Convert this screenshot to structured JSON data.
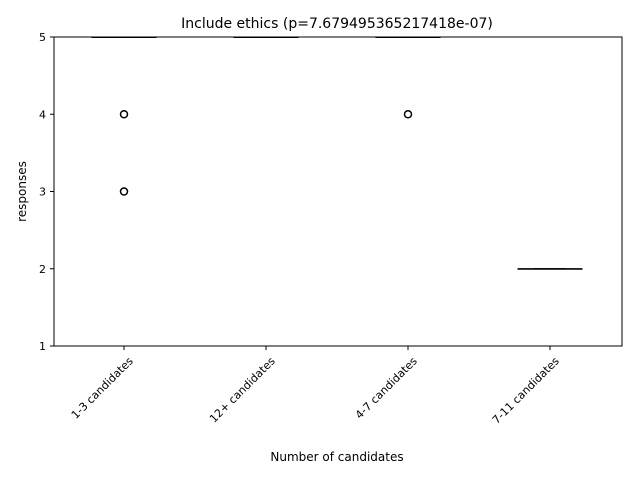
{
  "chart_data": {
    "type": "box",
    "title": "Include ethics (p=7.679495365217418e-07)",
    "xlabel": "Number of candidates",
    "ylabel": "responses",
    "ylim": [
      1,
      5
    ],
    "yticks": [
      1,
      2,
      3,
      4,
      5
    ],
    "categories": [
      "1-3 candidates",
      "12+ candidates",
      "4-7 candidates",
      "7-11 candidates"
    ],
    "boxes": [
      {
        "q1": 5,
        "median": 5,
        "q3": 5,
        "whisker_low": 5,
        "whisker_high": 5,
        "outliers": [
          4,
          3
        ]
      },
      {
        "q1": 5,
        "median": 5,
        "q3": 5,
        "whisker_low": 5,
        "whisker_high": 5,
        "outliers": []
      },
      {
        "q1": 5,
        "median": 5,
        "q3": 5,
        "whisker_low": 5,
        "whisker_high": 5,
        "outliers": [
          4
        ]
      },
      {
        "q1": 2,
        "median": 2,
        "q3": 2,
        "whisker_low": 2,
        "whisker_high": 2,
        "outliers": []
      }
    ],
    "grid": false,
    "colors": {
      "box": "#000000",
      "median": "#000000",
      "outlier": "#000000"
    }
  }
}
